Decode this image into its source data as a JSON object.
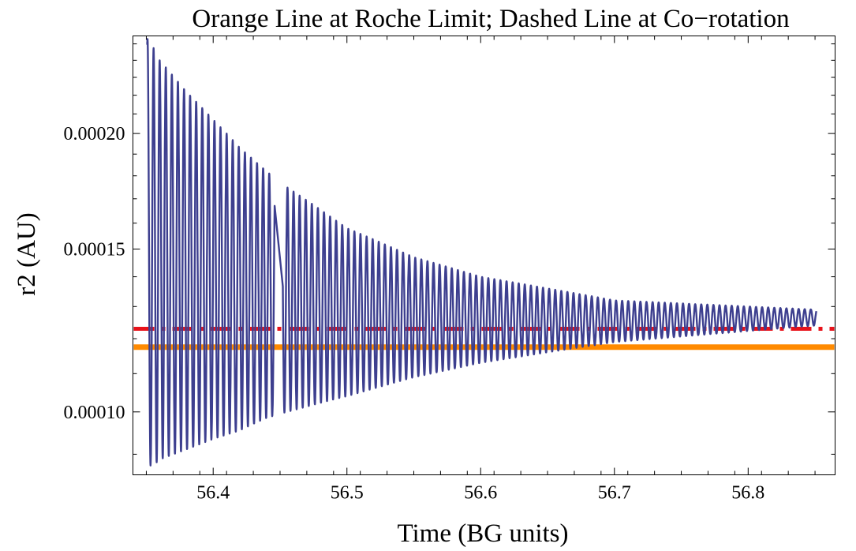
{
  "chart_data": {
    "type": "line",
    "title": "Orange Line at Roche Limit; Dashed Line at Co−rotation",
    "xlabel": "Time (BG units)",
    "ylabel": "r2 (AU)",
    "xlim": [
      56.34,
      56.865
    ],
    "ylim": [
      8.55e-05,
      0.000255
    ],
    "y_scale": "log",
    "x_ticks": [
      56.4,
      56.5,
      56.6,
      56.7,
      56.8
    ],
    "x_tick_labels": [
      "56.4",
      "56.5",
      "56.6",
      "56.7",
      "56.8"
    ],
    "y_ticks": [
      0.0001,
      0.00015,
      0.0002
    ],
    "y_tick_labels": [
      "0.00010",
      "0.00015",
      "0.00020"
    ],
    "grid": false,
    "series": [
      {
        "style": "solid",
        "color": "#3d3f8f",
        "description": "r2 oscillation",
        "start_x": 56.35,
        "end_x": 56.851,
        "initial_value": 0.00025,
        "period": 0.00455,
        "gap_x": [
          56.446,
          56.452
        ],
        "maxima": [
          {
            "x": 56.352,
            "y": 0.000253
          },
          {
            "x": 56.36,
            "y": 0.00024
          },
          {
            "x": 56.37,
            "y": 0.000231
          },
          {
            "x": 56.38,
            "y": 0.000222
          },
          {
            "x": 56.4,
            "y": 0.000207
          },
          {
            "x": 56.42,
            "y": 0.000193
          },
          {
            "x": 56.44,
            "y": 0.000182
          },
          {
            "x": 56.455,
            "y": 0.000175
          },
          {
            "x": 56.5,
            "y": 0.000158
          },
          {
            "x": 56.55,
            "y": 0.000147
          },
          {
            "x": 56.6,
            "y": 0.00014
          },
          {
            "x": 56.7,
            "y": 0.000132
          },
          {
            "x": 56.85,
            "y": 0.000129
          }
        ],
        "minima": [
          {
            "x": 56.355,
            "y": 8.75e-05
          },
          {
            "x": 56.36,
            "y": 8.88e-05
          },
          {
            "x": 56.38,
            "y": 9.1e-05
          },
          {
            "x": 56.4,
            "y": 9.35e-05
          },
          {
            "x": 56.42,
            "y": 9.55e-05
          },
          {
            "x": 56.44,
            "y": 9.85e-05
          },
          {
            "x": 56.455,
            "y": 0.0001
          },
          {
            "x": 56.5,
            "y": 0.000104
          },
          {
            "x": 56.55,
            "y": 0.000109
          },
          {
            "x": 56.6,
            "y": 0.000113
          },
          {
            "x": 56.7,
            "y": 0.000119
          },
          {
            "x": 56.85,
            "y": 0.000124
          }
        ]
      },
      {
        "style": "dashdot",
        "color": "#e8121a",
        "description": "co-rotation radius",
        "y": 0.000123
      },
      {
        "style": "solid-thick",
        "color": "#ff8a00",
        "description": "Roche limit",
        "y": 0.0001175
      }
    ]
  }
}
